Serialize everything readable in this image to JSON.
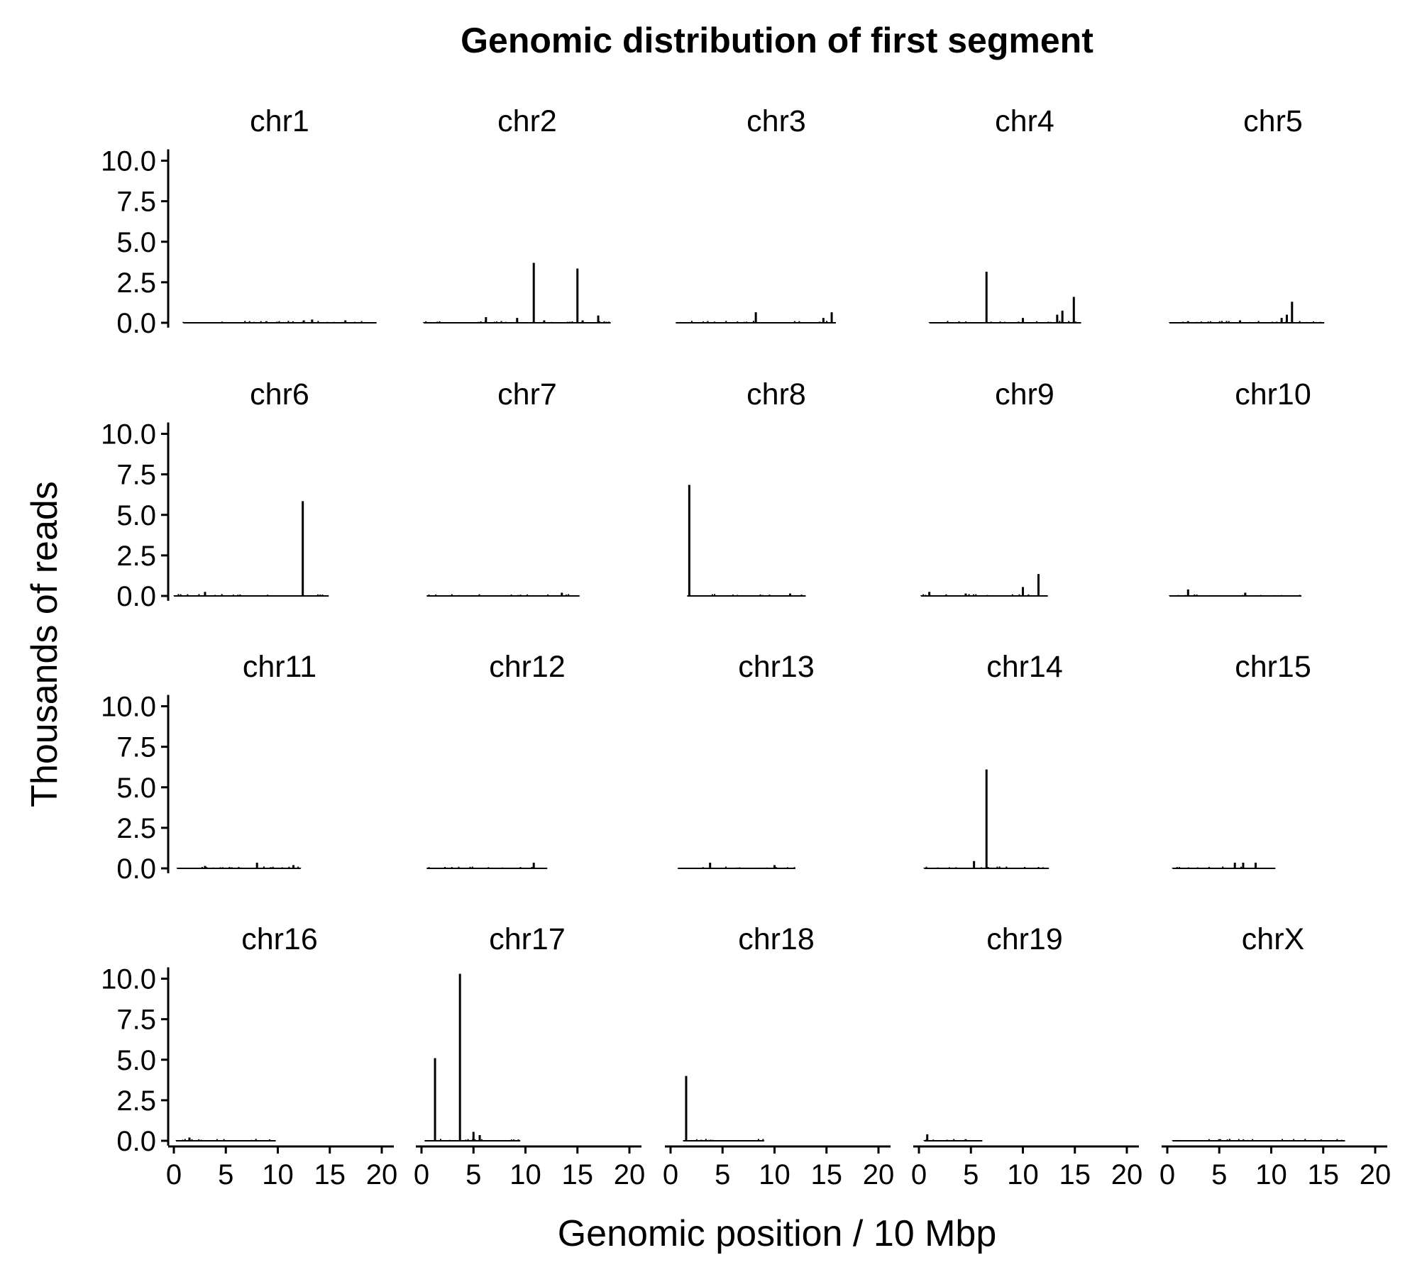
{
  "chart_data": {
    "type": "bar",
    "title": "Genomic distribution of first segment",
    "xlabel": "Genomic position / 10 Mbp",
    "ylabel": "Thousands of reads",
    "xlim": [
      -0.5,
      20.5
    ],
    "ylim": [
      -0.3,
      10.7
    ],
    "x_ticks": [
      0,
      5,
      10,
      15,
      20
    ],
    "y_ticks": [
      0.0,
      2.5,
      5.0,
      7.5,
      10.0
    ],
    "y_tick_labels": [
      "0.0",
      "2.5",
      "5.0",
      "7.5",
      "10.0"
    ],
    "facets": [
      {
        "name": "chr1",
        "extent": [
          0.9,
          19.5
        ],
        "peaks": [
          [
            8.9,
            0.1
          ],
          [
            12.5,
            0.15
          ],
          [
            13.3,
            0.2
          ],
          [
            16.5,
            0.15
          ]
        ]
      },
      {
        "name": "chr2",
        "extent": [
          0.2,
          18.2
        ],
        "peaks": [
          [
            6.2,
            0.35
          ],
          [
            9.2,
            0.3
          ],
          [
            10.8,
            3.7
          ],
          [
            11.8,
            0.15
          ],
          [
            15.0,
            3.35
          ],
          [
            15.5,
            0.15
          ],
          [
            17.0,
            0.45
          ]
        ]
      },
      {
        "name": "chr3",
        "extent": [
          0.5,
          15.9
        ],
        "peaks": [
          [
            8.2,
            0.65
          ],
          [
            14.7,
            0.3
          ],
          [
            15.5,
            0.65
          ]
        ]
      },
      {
        "name": "chr4",
        "extent": [
          1.0,
          15.6
        ],
        "peaks": [
          [
            6.5,
            3.15
          ],
          [
            10.0,
            0.3
          ],
          [
            13.3,
            0.5
          ],
          [
            13.8,
            0.75
          ],
          [
            14.9,
            1.6
          ]
        ]
      },
      {
        "name": "chr5",
        "extent": [
          0.2,
          15.1
        ],
        "peaks": [
          [
            2.0,
            0.1
          ],
          [
            7.0,
            0.15
          ],
          [
            11.0,
            0.3
          ],
          [
            11.5,
            0.5
          ],
          [
            12.0,
            1.3
          ]
        ]
      },
      {
        "name": "chr6",
        "extent": [
          0.0,
          14.9
        ],
        "peaks": [
          [
            3.0,
            0.25
          ],
          [
            12.4,
            5.85
          ]
        ]
      },
      {
        "name": "chr7",
        "extent": [
          0.5,
          15.2
        ],
        "peaks": [
          [
            13.5,
            0.2
          ]
        ]
      },
      {
        "name": "chr8",
        "extent": [
          1.6,
          13.0
        ],
        "peaks": [
          [
            1.8,
            6.85
          ],
          [
            11.5,
            0.15
          ]
        ]
      },
      {
        "name": "chr9",
        "extent": [
          0.2,
          12.4
        ],
        "peaks": [
          [
            1.0,
            0.25
          ],
          [
            4.5,
            0.15
          ],
          [
            10.0,
            0.55
          ],
          [
            11.5,
            1.35
          ]
        ]
      },
      {
        "name": "chr10",
        "extent": [
          0.2,
          12.9
        ],
        "peaks": [
          [
            2.0,
            0.4
          ],
          [
            7.5,
            0.2
          ]
        ]
      },
      {
        "name": "chr11",
        "extent": [
          0.3,
          12.2
        ],
        "peaks": [
          [
            3.0,
            0.15
          ],
          [
            8.0,
            0.35
          ],
          [
            11.5,
            0.2
          ]
        ]
      },
      {
        "name": "chr12",
        "extent": [
          0.5,
          12.1
        ],
        "peaks": [
          [
            10.8,
            0.35
          ]
        ]
      },
      {
        "name": "chr13",
        "extent": [
          0.7,
          12.0
        ],
        "peaks": [
          [
            3.8,
            0.35
          ],
          [
            10.0,
            0.2
          ]
        ]
      },
      {
        "name": "chr14",
        "extent": [
          0.5,
          12.5
        ],
        "peaks": [
          [
            5.3,
            0.45
          ],
          [
            6.5,
            6.1
          ]
        ]
      },
      {
        "name": "chr15",
        "extent": [
          0.5,
          10.4
        ],
        "peaks": [
          [
            6.5,
            0.35
          ],
          [
            7.3,
            0.35
          ],
          [
            8.5,
            0.35
          ]
        ]
      },
      {
        "name": "chr16",
        "extent": [
          0.2,
          9.8
        ],
        "peaks": [
          [
            1.5,
            0.2
          ]
        ]
      },
      {
        "name": "chr17",
        "extent": [
          0.3,
          9.5
        ],
        "peaks": [
          [
            1.3,
            5.1
          ],
          [
            3.7,
            10.3
          ],
          [
            5.0,
            0.55
          ],
          [
            5.6,
            0.35
          ]
        ]
      },
      {
        "name": "chr18",
        "extent": [
          1.2,
          9.0
        ],
        "peaks": [
          [
            1.5,
            4.0
          ]
        ]
      },
      {
        "name": "chr19",
        "extent": [
          0.5,
          6.1
        ],
        "peaks": [
          [
            0.8,
            0.4
          ],
          [
            4.5,
            0.1
          ]
        ]
      },
      {
        "name": "chrX",
        "extent": [
          0.5,
          17.1
        ],
        "peaks": [
          [
            5.0,
            0.1
          ]
        ]
      }
    ]
  }
}
